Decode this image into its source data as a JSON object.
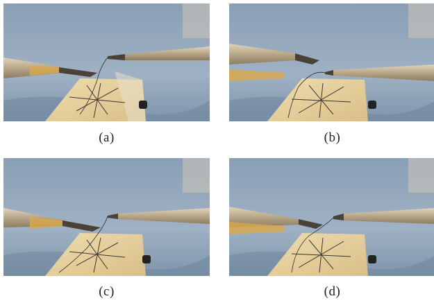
{
  "figure": {
    "panels": [
      {
        "id": "a",
        "caption": "(a)",
        "scene": "surgical-instruments-suture-pad"
      },
      {
        "id": "b",
        "caption": "(b)",
        "scene": "surgical-instruments-suture-pad"
      },
      {
        "id": "c",
        "caption": "(c)",
        "scene": "surgical-instruments-suture-pad"
      },
      {
        "id": "d",
        "caption": "(d)",
        "scene": "surgical-instruments-suture-pad"
      }
    ]
  },
  "colors": {
    "drape": "#8fa3b8",
    "pad": "#e6cf9c",
    "instrument": "#b8a890",
    "pattern_line": "#3a3530"
  }
}
